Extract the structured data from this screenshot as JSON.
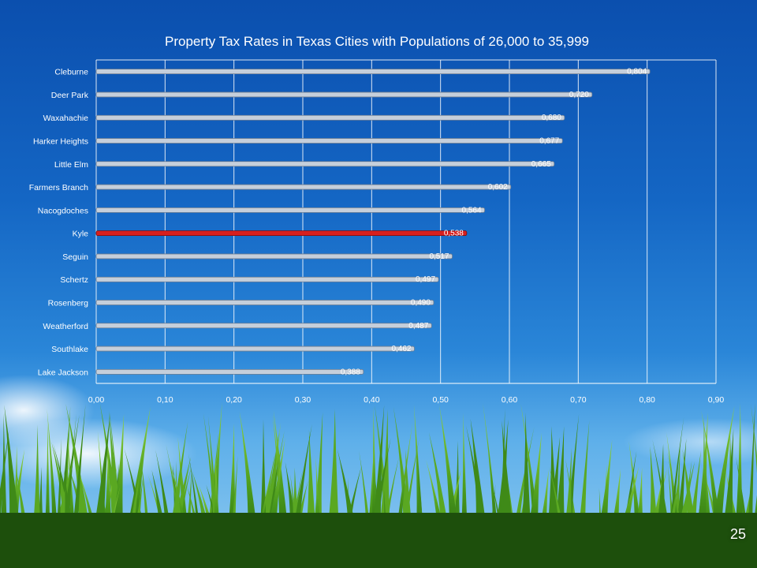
{
  "slide_number": "25",
  "colors": {
    "bar": "#c5cfdb",
    "highlight_bar": "#d71f1f",
    "text": "#ffffff",
    "grid": "#ffffff"
  },
  "chart_data": {
    "type": "bar",
    "orientation": "horizontal",
    "title": "Property Tax Rates in Texas Cities with Populations of 26,000 to 35,999",
    "xlabel": "",
    "ylabel": "",
    "xlim": [
      0,
      0.9
    ],
    "x_ticks": [
      "0,00",
      "0,10",
      "0,20",
      "0,30",
      "0,40",
      "0,50",
      "0,60",
      "0,70",
      "0,80",
      "0,90"
    ],
    "grid": "vertical",
    "legend": "none",
    "highlight_category": "Kyle",
    "categories": [
      "Cleburne",
      "Deer Park",
      "Waxahachie",
      "Harker Heights",
      "Little Elm",
      "Farmers Branch",
      "Nacogdoches",
      "Kyle",
      "Seguin",
      "Schertz",
      "Rosenberg",
      "Weatherford",
      "Southlake",
      "Lake Jackson"
    ],
    "values": [
      0.804,
      0.72,
      0.68,
      0.677,
      0.665,
      0.602,
      0.564,
      0.538,
      0.517,
      0.497,
      0.49,
      0.487,
      0.462,
      0.388
    ],
    "value_labels": [
      "0,804",
      "0,720",
      "0,680",
      "0,677",
      "0,665",
      "0,602",
      "0,564",
      "0,538",
      "0,517",
      "0,497",
      "0,490",
      "0,487",
      "0,462",
      "0,388"
    ]
  }
}
